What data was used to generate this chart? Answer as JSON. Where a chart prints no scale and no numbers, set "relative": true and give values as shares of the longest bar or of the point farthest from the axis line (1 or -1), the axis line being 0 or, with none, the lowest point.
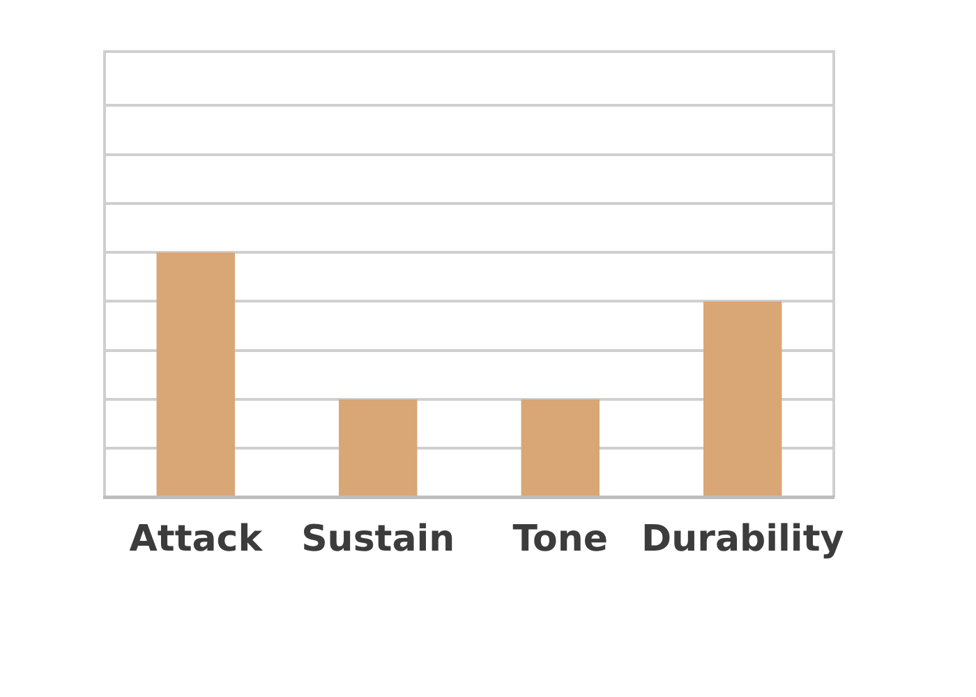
{
  "chart_data": {
    "type": "bar",
    "categories": [
      "Attack",
      "Sustain",
      "Tone",
      "Durability"
    ],
    "relative": true,
    "grid": "y",
    "values": [
      1,
      0.4,
      0.4,
      0.8
    ],
    "color": "#d9a676"
  }
}
